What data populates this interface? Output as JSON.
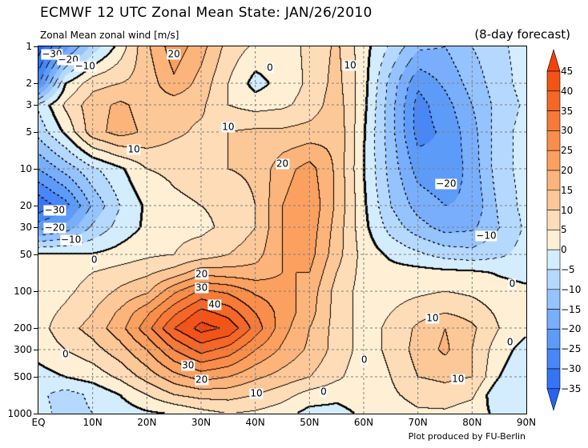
{
  "title": "ECMWF 12 UTC Zonal Mean State: JAN/26/2010",
  "subtitle": "Zonal Mean zonal wind [m/s]",
  "forecast_label": "(8-day forecast)",
  "credit": "Plot produced by FU-Berlin",
  "colors": {
    "palette": [
      "#2563f0",
      "#3574f5",
      "#4887f7",
      "#5d9bf9",
      "#78aefb",
      "#95c3fd",
      "#b5d9fe",
      "#d3edfe",
      "#fff0d5",
      "#fedcb7",
      "#fdc897",
      "#fcb47a",
      "#fba05f",
      "#f98e4b",
      "#f77a38",
      "#f56727",
      "#f45318",
      "#f2420a"
    ],
    "contour": "#000000",
    "grid": "#808080"
  },
  "chart_data": {
    "type": "contour",
    "title": "Zonal Mean zonal wind [m/s]",
    "xlabel": "Latitude",
    "ylabel": "Pressure [hPa]",
    "xlim": [
      0,
      90
    ],
    "ylim": [
      1000,
      1
    ],
    "y_scale": "log",
    "grid": true,
    "level_step": 5,
    "level_min": -35,
    "level_max": 45,
    "x_ticks": [
      {
        "value": 0,
        "label": "EQ"
      },
      {
        "value": 10,
        "label": "10N"
      },
      {
        "value": 20,
        "label": "20N"
      },
      {
        "value": 30,
        "label": "30N"
      },
      {
        "value": 40,
        "label": "40N"
      },
      {
        "value": 50,
        "label": "50N"
      },
      {
        "value": 60,
        "label": "60N"
      },
      {
        "value": 70,
        "label": "70N"
      },
      {
        "value": 80,
        "label": "80N"
      },
      {
        "value": 90,
        "label": "90N"
      }
    ],
    "y_ticks": [
      {
        "value": 1,
        "label": "1"
      },
      {
        "value": 2,
        "label": "2"
      },
      {
        "value": 3,
        "label": "3"
      },
      {
        "value": 5,
        "label": "5"
      },
      {
        "value": 10,
        "label": "10"
      },
      {
        "value": 20,
        "label": "20"
      },
      {
        "value": 30,
        "label": "30"
      },
      {
        "value": 50,
        "label": "50"
      },
      {
        "value": 100,
        "label": "100"
      },
      {
        "value": 200,
        "label": "200"
      },
      {
        "value": 300,
        "label": "300"
      },
      {
        "value": 500,
        "label": "500"
      },
      {
        "value": 1000,
        "label": "1000"
      }
    ],
    "colorbar_labels": [
      "45",
      "40",
      "35",
      "30",
      "25",
      "20",
      "15",
      "10",
      "5",
      "0",
      "-5",
      "-10",
      "-15",
      "-20",
      "-25",
      "-30",
      "-35"
    ],
    "lats": [
      0,
      5,
      10,
      15,
      20,
      25,
      30,
      35,
      40,
      45,
      50,
      55,
      60,
      65,
      70,
      75,
      80,
      85,
      90
    ],
    "pressures": [
      1,
      2,
      3,
      5,
      10,
      20,
      30,
      50,
      70,
      100,
      150,
      200,
      300,
      500,
      700,
      1000
    ],
    "values": [
      [
        -38,
        -22,
        -8,
        2,
        14,
        23,
        17,
        8,
        4,
        3,
        6,
        11,
        2,
        -6,
        -14,
        -15,
        -10,
        -6,
        -3
      ],
      [
        -26,
        0,
        8,
        10,
        12,
        19,
        13,
        5,
        -2,
        2,
        6,
        12,
        2,
        -12,
        -24,
        -19,
        -13,
        -7,
        -3
      ],
      [
        -4,
        6,
        13,
        16,
        13,
        12,
        11,
        5,
        3,
        4,
        7,
        13,
        1.5,
        -13,
        -27,
        -22,
        -15,
        -8,
        -4
      ],
      [
        -8,
        1,
        13,
        17,
        14,
        11,
        9,
        10,
        11,
        11,
        12,
        14,
        0.5,
        -13,
        -27,
        -24,
        -17,
        -7,
        -3
      ],
      [
        -20,
        -13,
        -6,
        -1,
        5,
        6,
        7,
        10,
        11,
        18,
        22,
        14,
        0,
        -12,
        -22,
        -24,
        -18,
        -7,
        -3
      ],
      [
        -34,
        -27,
        -14,
        -5,
        1,
        4,
        5,
        6,
        10,
        20,
        24,
        14,
        1,
        -10,
        -17,
        -20,
        -19,
        -9,
        -3
      ],
      [
        -22,
        -18,
        -9,
        -3,
        1,
        4,
        4,
        6,
        10,
        20,
        23,
        13,
        1.5,
        -7,
        -13,
        -17,
        -16,
        -10,
        -4
      ],
      [
        1,
        1,
        0.5,
        2,
        4,
        5,
        7,
        10,
        13,
        20,
        22,
        12,
        3,
        -1,
        -4,
        -7,
        -8,
        -6,
        -3
      ],
      [
        2,
        3,
        5,
        7,
        9,
        12,
        18,
        17,
        17,
        20,
        20,
        10,
        3,
        2,
        2,
        1.5,
        1,
        -0.5,
        -1.5
      ],
      [
        2,
        4,
        7,
        11,
        14,
        24,
        31,
        29,
        24,
        22,
        18,
        8,
        3,
        3,
        4,
        5,
        4,
        2,
        1
      ],
      [
        3,
        6,
        10,
        16,
        24,
        34,
        42,
        38,
        30,
        23,
        17,
        8,
        3,
        5,
        8,
        10,
        8,
        4,
        1
      ],
      [
        3,
        8,
        12,
        18,
        28,
        40,
        47,
        44,
        33,
        22,
        15,
        8,
        3,
        6,
        11,
        15,
        11,
        5,
        1
      ],
      [
        2,
        5,
        8,
        13,
        20,
        30,
        37,
        33,
        25,
        19,
        14,
        8,
        3,
        6,
        12,
        16,
        10,
        2,
        -2
      ],
      [
        -2,
        0,
        2,
        6,
        12,
        18,
        22,
        20,
        16,
        13,
        10,
        6,
        2,
        5,
        10,
        11,
        10,
        0,
        -4
      ],
      [
        -4,
        -7,
        -4,
        0,
        5,
        10,
        12,
        12,
        10,
        7,
        3,
        1.5,
        3,
        4,
        7,
        8,
        6,
        -5,
        -3
      ],
      [
        -3,
        -7,
        -5,
        -3,
        -1,
        0,
        3,
        5,
        4,
        2,
        -2,
        -2,
        1,
        2,
        4,
        4,
        2,
        -1,
        -3
      ]
    ],
    "contour_labels": [
      {
        "text": "-30",
        "lat": 2.5,
        "p": 1.16
      },
      {
        "text": "-20",
        "lat": 5.5,
        "p": 1.3
      },
      {
        "text": "-10",
        "lat": 8.6,
        "p": 1.45
      },
      {
        "text": "20",
        "lat": 25,
        "p": 1.16
      },
      {
        "text": "0",
        "lat": 42.7,
        "p": 1.5
      },
      {
        "text": "10",
        "lat": 57.5,
        "p": 1.43
      },
      {
        "text": "10",
        "lat": 35,
        "p": 4.6
      },
      {
        "text": "10",
        "lat": 17.6,
        "p": 7
      },
      {
        "text": "20",
        "lat": 45,
        "p": 9.1
      },
      {
        "text": "-20",
        "lat": 75.2,
        "p": 13.3
      },
      {
        "text": "-30",
        "lat": 3,
        "p": 21.9
      },
      {
        "text": "-20",
        "lat": 3,
        "p": 30.5
      },
      {
        "text": "-10",
        "lat": 6,
        "p": 38
      },
      {
        "text": "-10",
        "lat": 82.6,
        "p": 35.4
      },
      {
        "text": "0",
        "lat": 10.3,
        "p": 55.4
      },
      {
        "text": "0",
        "lat": 87.4,
        "p": 87
      },
      {
        "text": "20",
        "lat": 30.1,
        "p": 73
      },
      {
        "text": "30",
        "lat": 30.1,
        "p": 94
      },
      {
        "text": "40",
        "lat": 32.5,
        "p": 129
      },
      {
        "text": "10",
        "lat": 72.7,
        "p": 167
      },
      {
        "text": "0",
        "lat": 87,
        "p": 262
      },
      {
        "text": "0",
        "lat": 60.1,
        "p": 365
      },
      {
        "text": "0",
        "lat": 5,
        "p": 330
      },
      {
        "text": "30",
        "lat": 27.6,
        "p": 405
      },
      {
        "text": "20",
        "lat": 30.1,
        "p": 530
      },
      {
        "text": "10",
        "lat": 77.4,
        "p": 520
      },
      {
        "text": "10",
        "lat": 40.2,
        "p": 685
      },
      {
        "text": "0",
        "lat": 52.6,
        "p": 664
      }
    ]
  }
}
